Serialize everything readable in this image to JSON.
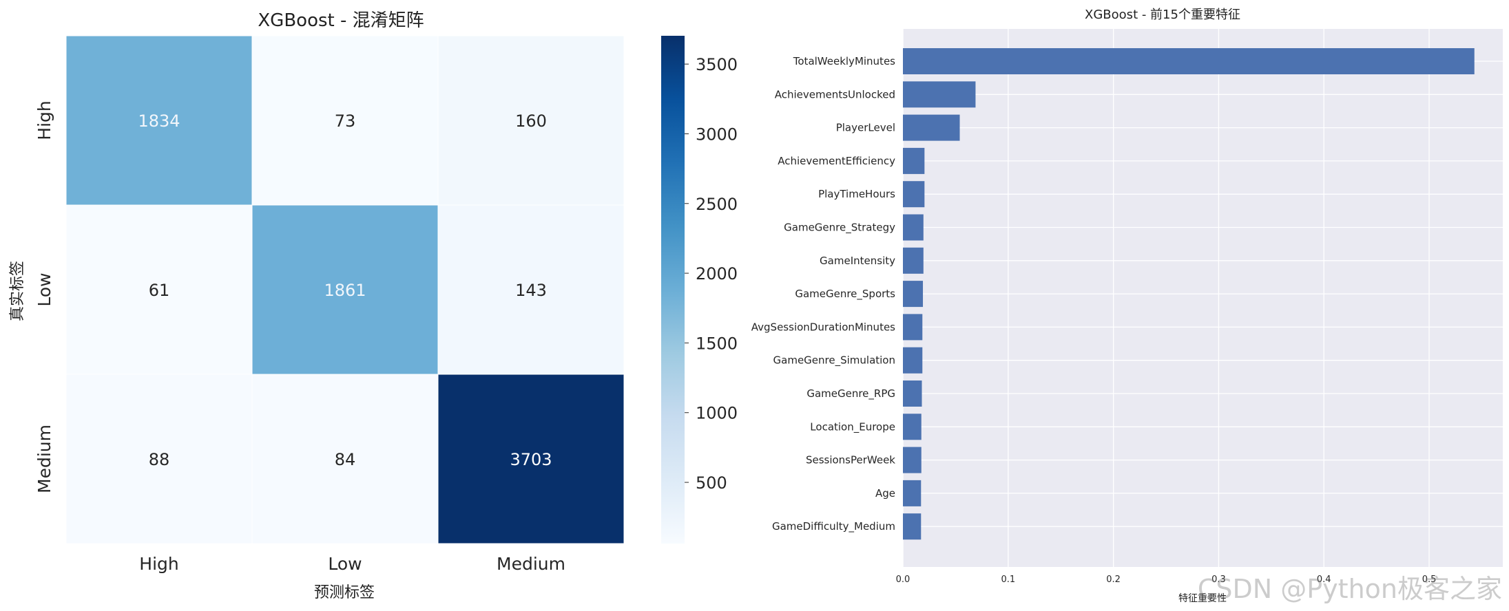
{
  "chart_data": [
    {
      "type": "heatmap",
      "title": "XGBoost - 混淆矩阵",
      "xlabel": "预测标签",
      "ylabel": "真实标签",
      "x_categories": [
        "High",
        "Low",
        "Medium"
      ],
      "y_categories": [
        "High",
        "Low",
        "Medium"
      ],
      "values": [
        [
          1834,
          73,
          160
        ],
        [
          61,
          1861,
          143
        ],
        [
          88,
          84,
          3703
        ]
      ],
      "colormap": "Blues",
      "colorbar": {
        "min": 61,
        "max": 3703,
        "ticks": [
          500,
          1000,
          1500,
          2000,
          2500,
          3000,
          3500
        ]
      },
      "annotations": true
    },
    {
      "type": "bar",
      "orientation": "horizontal",
      "title": "XGBoost - 前15个重要特征",
      "xlabel": "特征重要性",
      "ylabel": "",
      "categories": [
        "TotalWeeklyMinutes",
        "AchievementsUnlocked",
        "PlayerLevel",
        "AchievementEfficiency",
        "PlayTimeHours",
        "GameGenre_Strategy",
        "GameIntensity",
        "GameGenre_Sports",
        "AvgSessionDurationMinutes",
        "GameGenre_Simulation",
        "GameGenre_RPG",
        "Location_Europe",
        "SessionsPerWeek",
        "Age",
        "GameDifficulty_Medium"
      ],
      "values": [
        0.543,
        0.069,
        0.054,
        0.0205,
        0.0205,
        0.0195,
        0.0195,
        0.019,
        0.0185,
        0.0185,
        0.018,
        0.0175,
        0.0175,
        0.0172,
        0.0172
      ],
      "xlim": [
        0,
        0.57
      ],
      "xticks": [
        0.0,
        0.1,
        0.2,
        0.3,
        0.4,
        0.5
      ],
      "xtick_labels": [
        "0.0",
        "0.1",
        "0.2",
        "0.3",
        "0.4",
        "0.5"
      ],
      "grid": true,
      "bar_color": "#4c72b0",
      "background_color": "#eaeaf2"
    }
  ],
  "watermark": "CSDN @Python极客之家"
}
